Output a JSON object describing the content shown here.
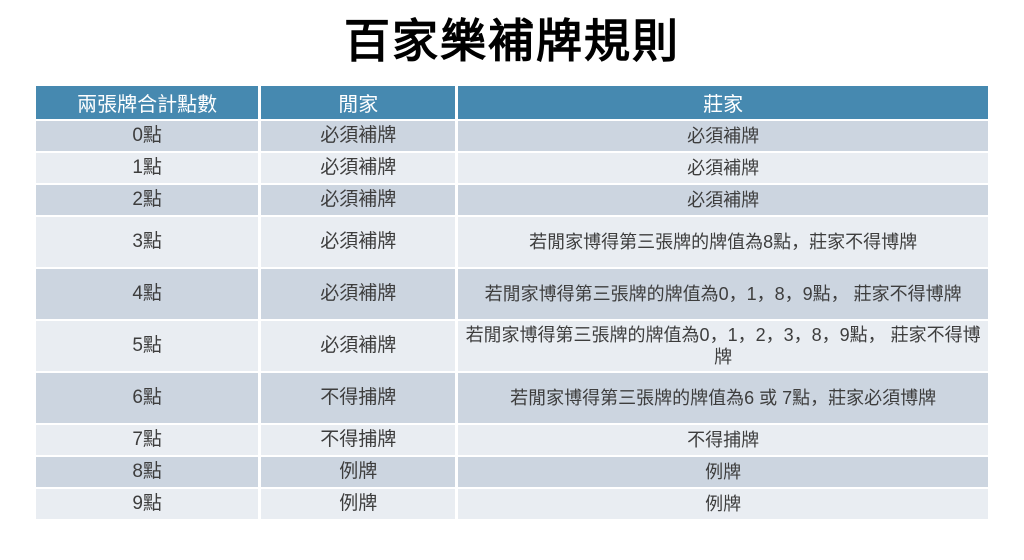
{
  "page": {
    "title": "百家樂補牌規則"
  },
  "colors": {
    "header_bg": "#4689b0",
    "header_text": "#ffffff",
    "row_dark": "#ccd5e0",
    "row_light": "#e9edf2",
    "cell_text": "#3d3d3d",
    "title_text": "#000000",
    "page_bg": "#ffffff"
  },
  "table": {
    "headers": [
      "兩張牌合計點數",
      "閒家",
      "莊家"
    ],
    "rows": [
      {
        "points": "0點",
        "player": "必須補牌",
        "banker": "必須補牌"
      },
      {
        "points": "1點",
        "player": "必須補牌",
        "banker": "必須補牌"
      },
      {
        "points": "2點",
        "player": "必須補牌",
        "banker": "必須補牌"
      },
      {
        "points": "3點",
        "player": "必須補牌",
        "banker": "若閒家博得第三張牌的牌值為8點，莊家不得博牌"
      },
      {
        "points": "4點",
        "player": "必須補牌",
        "banker": "若閒家博得第三張牌的牌值為0，1，8，9點， 莊家不得博牌"
      },
      {
        "points": "5點",
        "player": "必須補牌",
        "banker": "若閒家博得第三張牌的牌值為0，1，2，3，8，9點， 莊家不得博牌"
      },
      {
        "points": "6點",
        "player": "不得捕牌",
        "banker": "若閒家博得第三張牌的牌值為6 或 7點，莊家必須博牌"
      },
      {
        "points": "7點",
        "player": "不得捕牌",
        "banker": "不得捕牌"
      },
      {
        "points": "8點",
        "player": "例牌",
        "banker": "例牌"
      },
      {
        "points": "9點",
        "player": "例牌",
        "banker": "例牌"
      }
    ]
  }
}
